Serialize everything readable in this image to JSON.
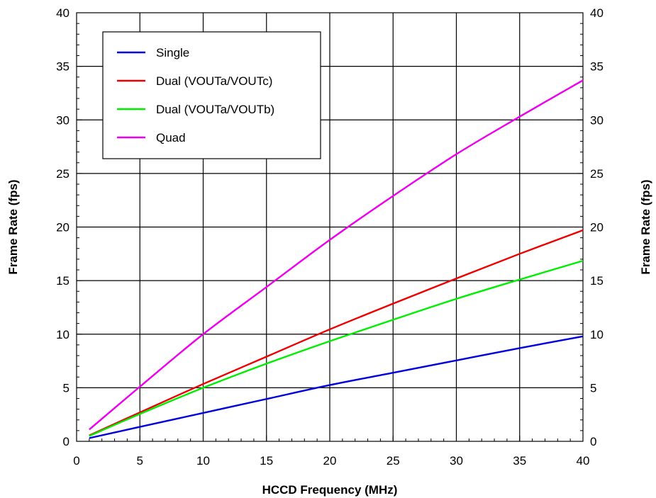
{
  "chart_data": {
    "type": "line",
    "title": "",
    "xlabel": "HCCD Frequency (MHz)",
    "ylabel": "Frame Rate (fps)",
    "ylabel_right": "Frame Rate (fps)",
    "xlim": [
      0,
      40
    ],
    "ylim": [
      0,
      40
    ],
    "x_ticks": [
      0,
      5,
      10,
      15,
      20,
      25,
      30,
      35,
      40
    ],
    "y_ticks": [
      0,
      5,
      10,
      15,
      20,
      25,
      30,
      35,
      40
    ],
    "grid": true,
    "legend_position": "top-left",
    "series": [
      {
        "name": "Single",
        "color": "#0000dd",
        "x": [
          1,
          5,
          10,
          15,
          20,
          25,
          30,
          35,
          40
        ],
        "y": [
          0.3,
          1.35,
          2.65,
          3.95,
          5.25,
          6.4,
          7.55,
          8.7,
          9.8
        ]
      },
      {
        "name": "Dual (VOUTa/VOUTc)",
        "color": "#ee0000",
        "x": [
          1,
          5,
          10,
          15,
          20,
          25,
          30,
          35,
          40
        ],
        "y": [
          0.55,
          2.7,
          5.35,
          7.9,
          10.45,
          12.85,
          15.2,
          17.5,
          19.7
        ]
      },
      {
        "name": "Dual (VOUTa/VOUTb)",
        "color": "#00ee00",
        "x": [
          1,
          5,
          10,
          15,
          20,
          25,
          30,
          35,
          40
        ],
        "y": [
          0.5,
          2.55,
          5.0,
          7.25,
          9.35,
          11.35,
          13.3,
          15.1,
          16.85
        ]
      },
      {
        "name": "Quad",
        "color": "#ee00ee",
        "x": [
          1,
          5,
          10,
          15,
          20,
          25,
          30,
          35,
          40
        ],
        "y": [
          1.1,
          5.1,
          10.0,
          14.4,
          18.8,
          22.9,
          26.8,
          30.3,
          33.7
        ]
      }
    ]
  }
}
